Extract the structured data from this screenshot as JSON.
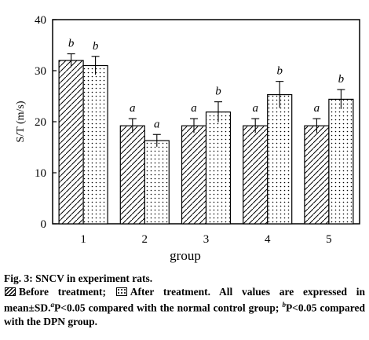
{
  "chart_data": {
    "type": "bar",
    "categories": [
      "1",
      "2",
      "3",
      "4",
      "5"
    ],
    "series": [
      {
        "name": "Before treatment",
        "values": [
          32.0,
          19.2,
          19.2,
          19.2,
          19.2
        ],
        "errors": [
          1.3,
          1.4,
          1.4,
          1.4,
          1.4
        ],
        "annotations": [
          "b",
          "a",
          "a",
          "a",
          "a"
        ]
      },
      {
        "name": "After treatment",
        "values": [
          31.0,
          16.3,
          21.9,
          25.3,
          24.4
        ],
        "errors": [
          1.8,
          1.2,
          2.0,
          2.6,
          1.9
        ],
        "annotations": [
          "b",
          "a",
          "b",
          "b",
          "b"
        ]
      }
    ],
    "ylim": [
      0,
      40
    ],
    "yticks": [
      "0",
      "10",
      "20",
      "30",
      "40"
    ],
    "xlabel": "group",
    "ylabel": "S/T (m/s)"
  },
  "caption": {
    "title": "Fig. 3: SNCV in experiment rats.",
    "legend_before": "Before treatment;",
    "legend_after": "After treatment.",
    "note_part1": "All values are expressed in mean±SD.",
    "sup_a": "a",
    "note_part2": "P<0.05 compared with the normal control group;",
    "sup_b": "b",
    "note_part3": "P<0.05 compared with the DPN group."
  }
}
